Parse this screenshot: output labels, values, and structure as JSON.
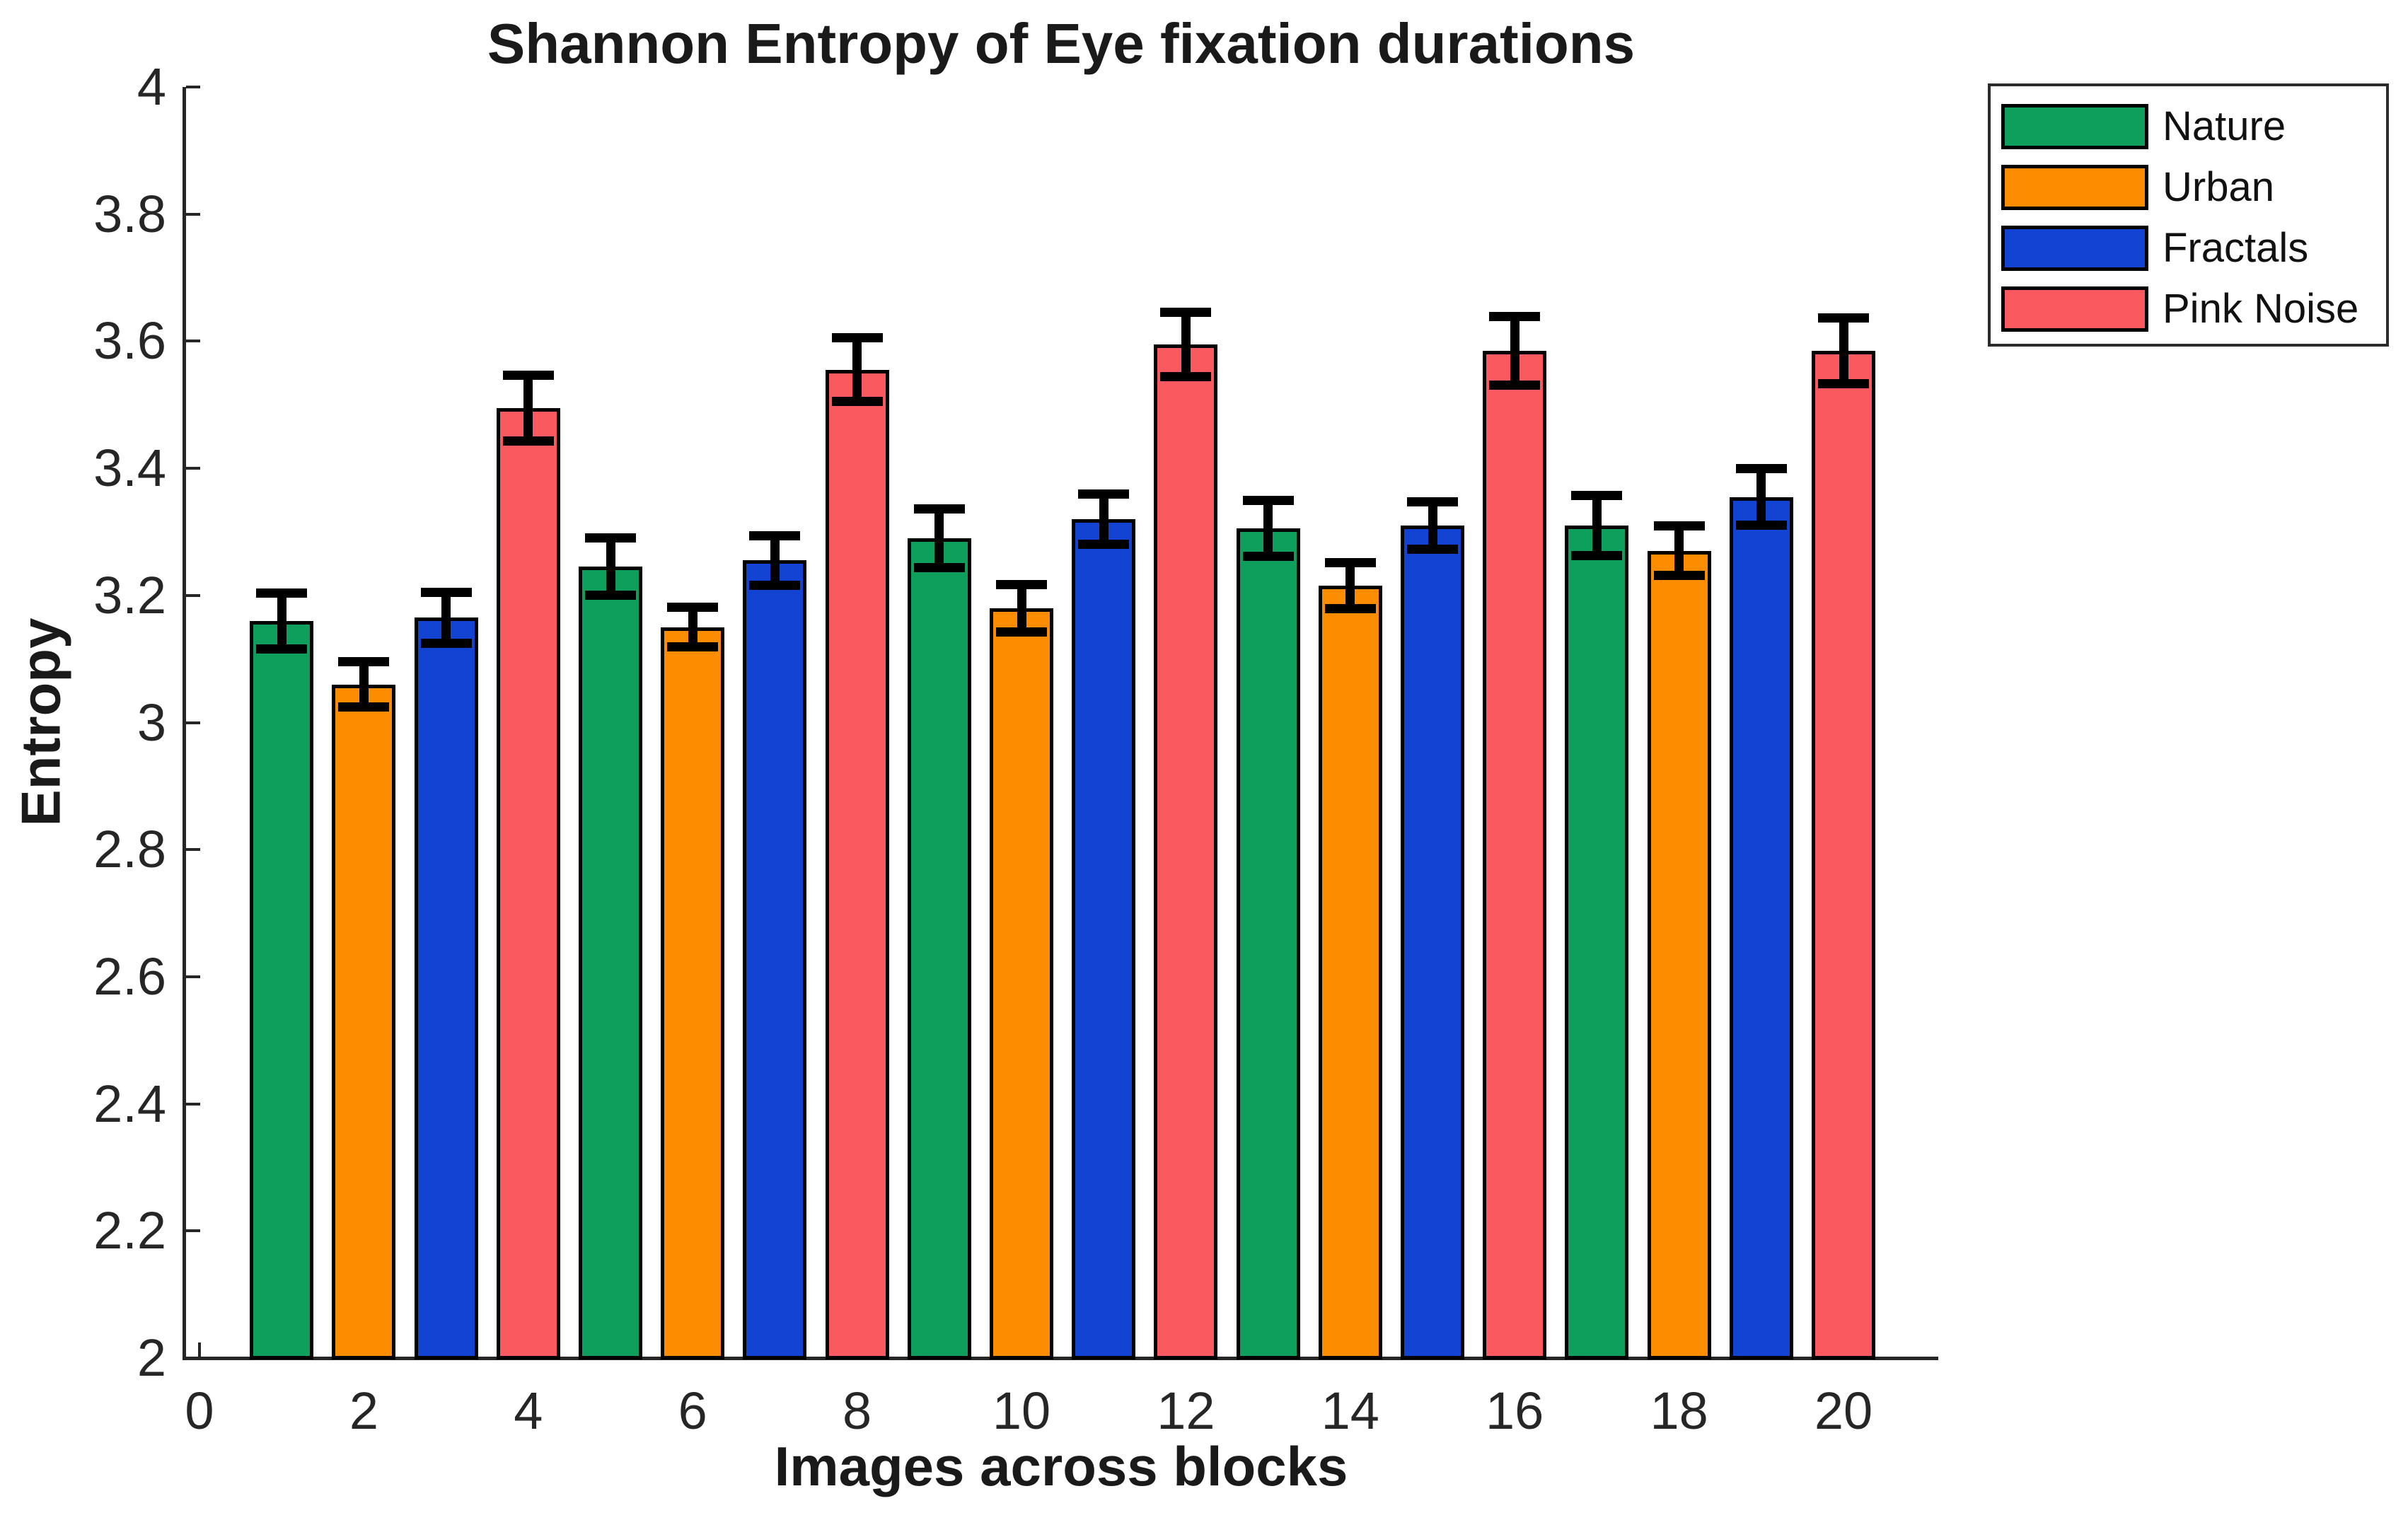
{
  "title": "Shannon Entropy of Eye fixation durations",
  "axes": {
    "x_label": "Images across blocks",
    "y_label": "Entropy"
  },
  "legend": {
    "position": "top-right-outside",
    "items": [
      {
        "label": "Nature",
        "color": "#0E9F5C"
      },
      {
        "label": "Urban",
        "color": "#FC8C00"
      },
      {
        "label": "Fractals",
        "color": "#1343D2"
      },
      {
        "label": "Pink Noise",
        "color": "#F9595F"
      }
    ]
  },
  "chart_data": {
    "type": "bar",
    "title": "Shannon Entropy of Eye fixation durations",
    "xlabel": "Images across blocks",
    "ylabel": "Entropy",
    "ylim": [
      2,
      4
    ],
    "xlim": [
      -0.2,
      21.2
    ],
    "grid": false,
    "bar_edge_color": "#000000",
    "error_bar_color": "#000000",
    "axis_color": "#262626",
    "x_tick_values": [
      0,
      2,
      4,
      6,
      8,
      10,
      12,
      14,
      16,
      18,
      20
    ],
    "x_tick_labels": [
      "0",
      "2",
      "4",
      "6",
      "8",
      "10",
      "12",
      "14",
      "16",
      "18",
      "20"
    ],
    "y_tick_values": [
      2,
      2.2,
      2.4,
      2.6,
      2.8,
      3,
      3.2,
      3.4,
      3.6,
      3.8,
      4
    ],
    "y_tick_labels": [
      "2",
      "2.2",
      "2.4",
      "2.6",
      "2.8",
      "3",
      "3.2",
      "3.4",
      "3.6",
      "3.8",
      "4"
    ],
    "series": [
      {
        "name": "Nature",
        "color": "#0E9F5C",
        "x": [
          1,
          5,
          9,
          13,
          17
        ],
        "values": [
          3.16,
          3.245,
          3.29,
          3.305,
          3.31
        ],
        "errors": [
          0.044,
          0.045,
          0.046,
          0.044,
          0.047
        ]
      },
      {
        "name": "Urban",
        "color": "#FC8C00",
        "x": [
          2,
          6,
          10,
          14,
          18
        ],
        "values": [
          3.06,
          3.15,
          3.18,
          3.215,
          3.27
        ],
        "errors": [
          0.036,
          0.031,
          0.037,
          0.036,
          0.039
        ]
      },
      {
        "name": "Fractals",
        "color": "#1343D2",
        "x": [
          3,
          7,
          11,
          15,
          19
        ],
        "values": [
          3.165,
          3.255,
          3.32,
          3.31,
          3.355
        ],
        "errors": [
          0.04,
          0.039,
          0.04,
          0.037,
          0.045
        ]
      },
      {
        "name": "Pink Noise",
        "color": "#F9595F",
        "x": [
          4,
          8,
          12,
          16,
          20
        ],
        "values": [
          3.495,
          3.555,
          3.595,
          3.585,
          3.585
        ],
        "errors": [
          0.052,
          0.05,
          0.051,
          0.054,
          0.052
        ]
      }
    ]
  }
}
